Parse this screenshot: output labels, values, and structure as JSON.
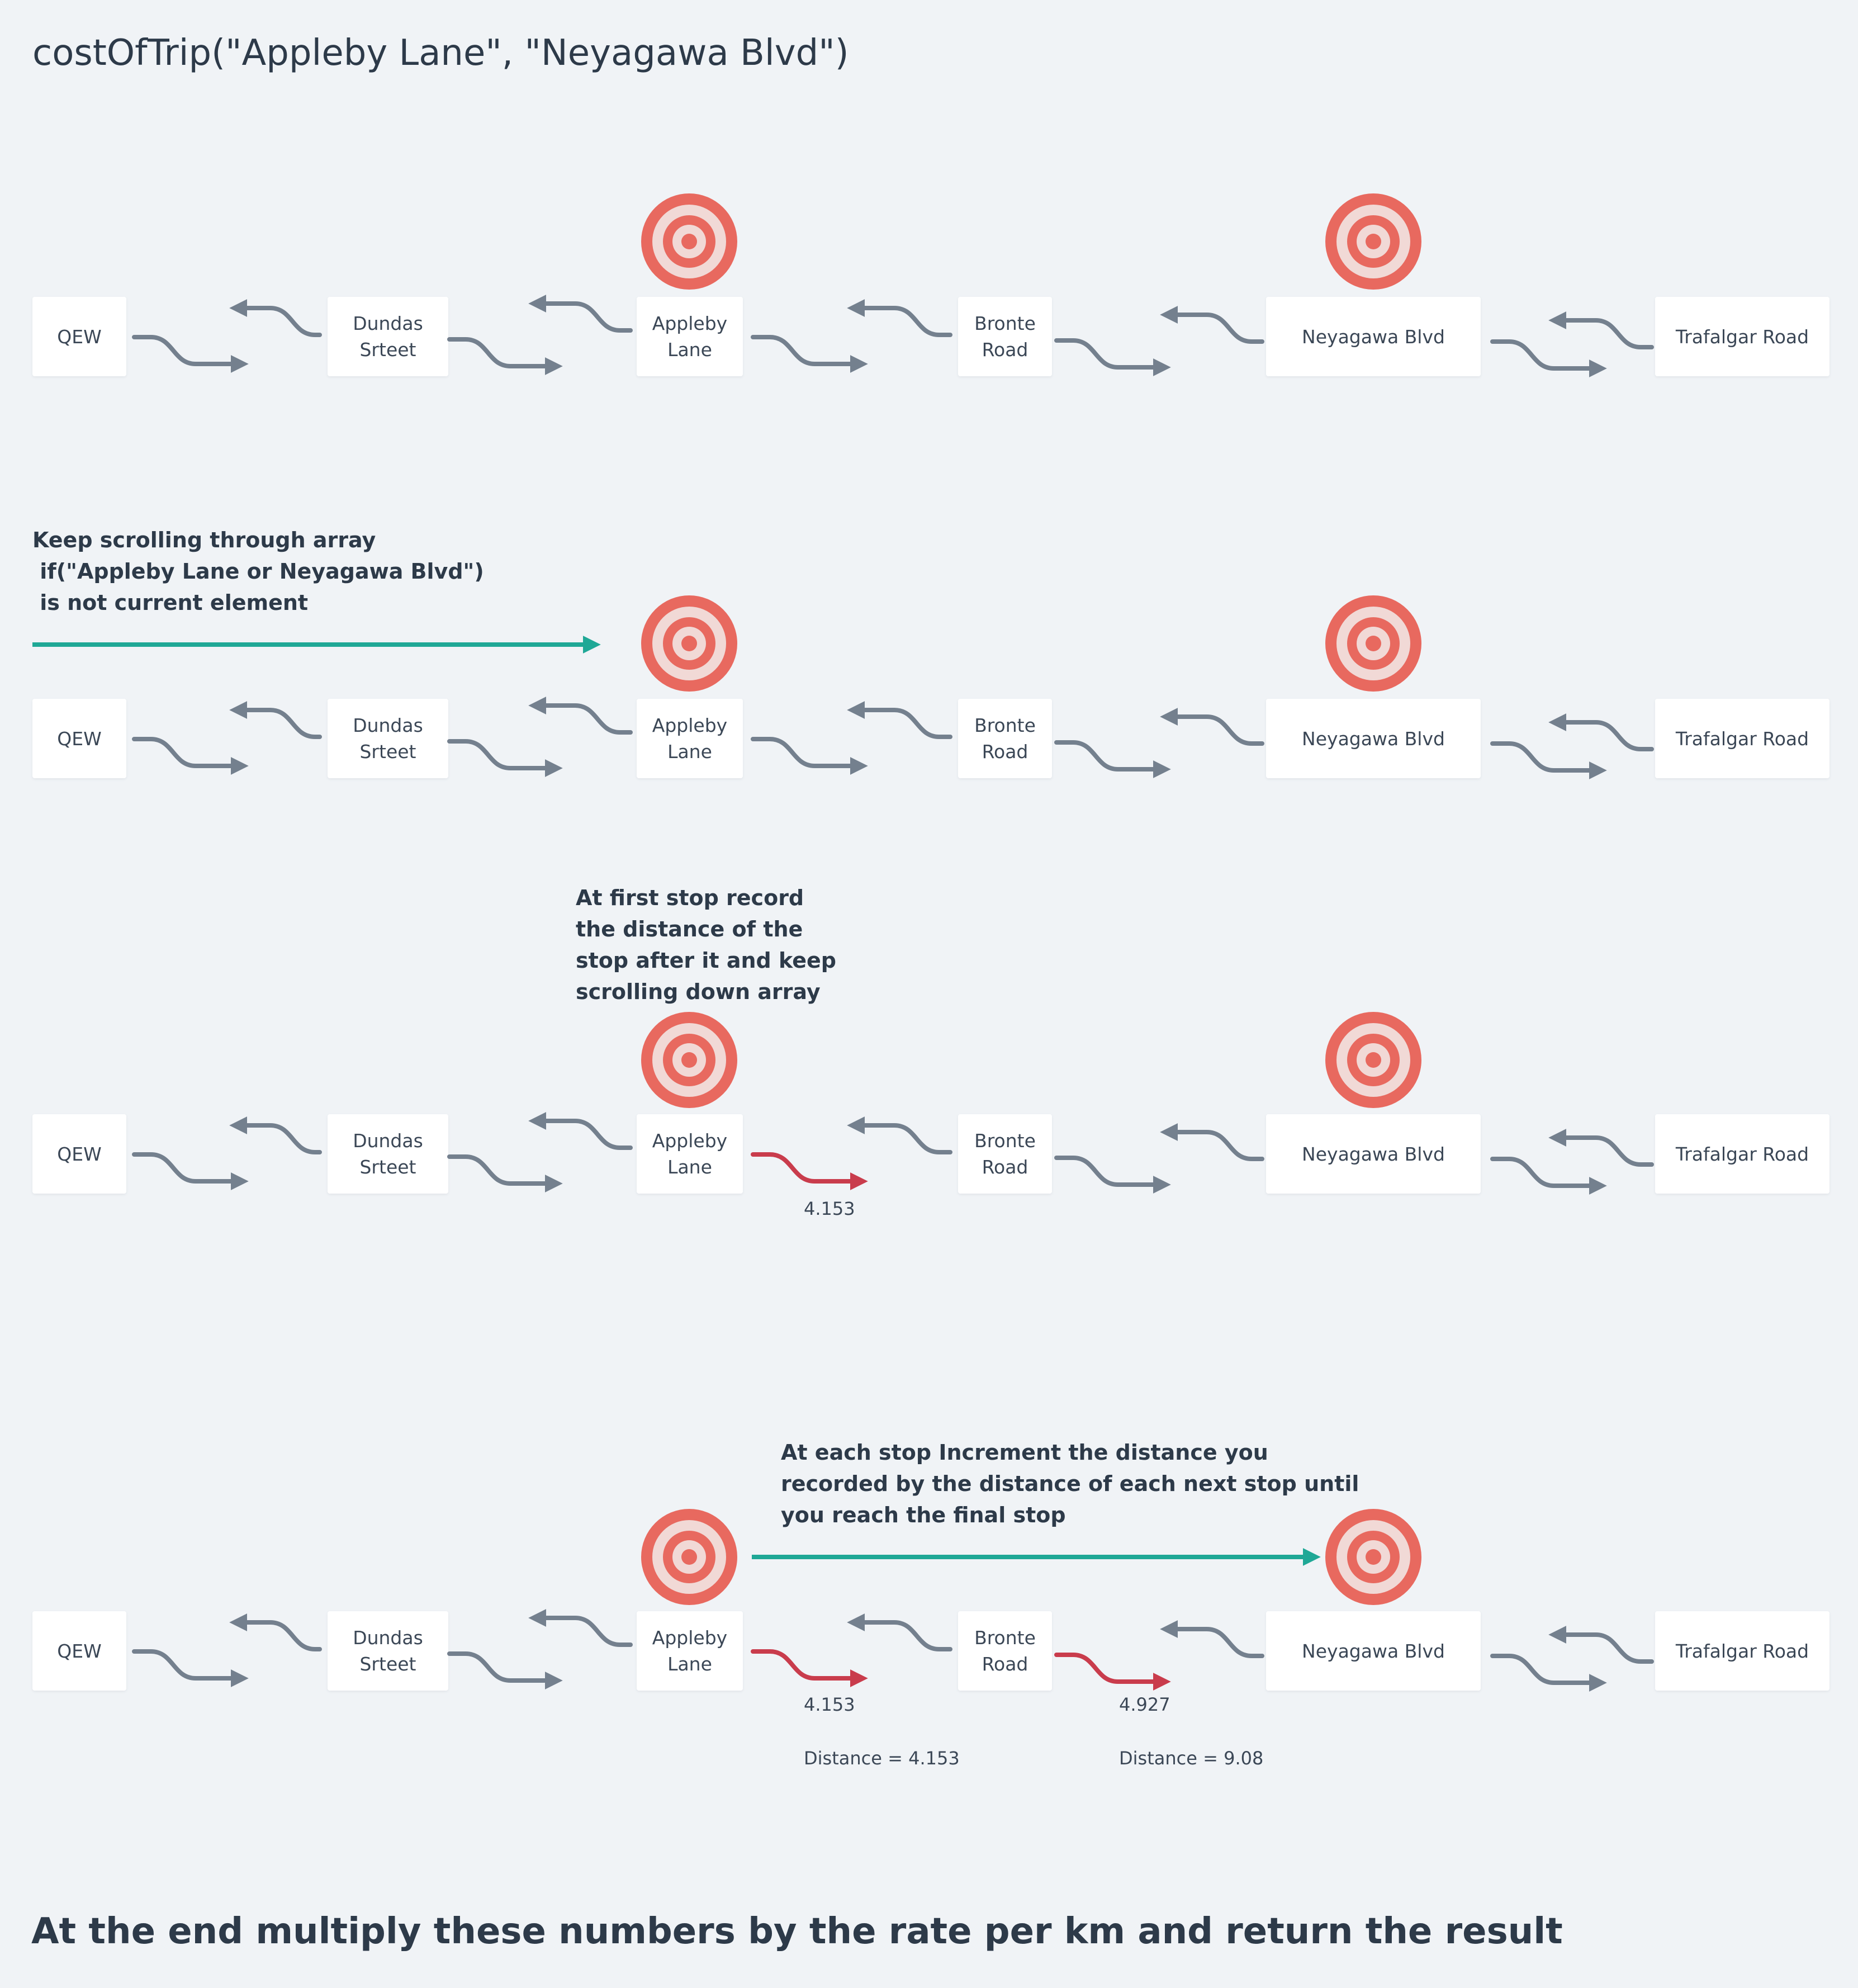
{
  "title": "costOfTrip(\"Appleby Lane\", \"Neyagawa Blvd\")",
  "stops": [
    {
      "label": "QEW"
    },
    {
      "label": "Dundas\nSrteet"
    },
    {
      "label": "Appleby\nLane"
    },
    {
      "label": "Bronte\nRoad"
    },
    {
      "label": "Neyagawa Blvd"
    },
    {
      "label": "Trafalgar Road"
    }
  ],
  "steps": [
    {
      "note": ""
    },
    {
      "note": "Keep scrolling through array\n if(\"Appleby Lane or Neyagawa Blvd\")\n is not current element"
    },
    {
      "note": "At first stop record\nthe distance of the\nstop after it and keep\nscrolling down array"
    },
    {
      "note": "At each stop Increment the distance you\nrecorded by the distance of each next stop until\nyou reach the final stop"
    }
  ],
  "segment_values": {
    "step3_appleby_bronte": "4.153",
    "step4_appleby_bronte": "4.153",
    "step4_bronte_neyagawa": "4.927"
  },
  "running_totals": {
    "after_bronte": "Distance = 4.153",
    "after_neyagawa": "Distance = 9.08"
  },
  "footer": "At the end multiply these numbers by the rate per km and return the result",
  "colors": {
    "background": "#f0f3f6",
    "target": "#e8695f",
    "target_ring": "#f1d9d6",
    "arrow_gray": "#74808e",
    "arrow_red": "#c93c4c",
    "arrow_teal": "#1fa896",
    "text": "#2d3a49"
  },
  "icons": {
    "target": "bullseye-target-icon"
  }
}
